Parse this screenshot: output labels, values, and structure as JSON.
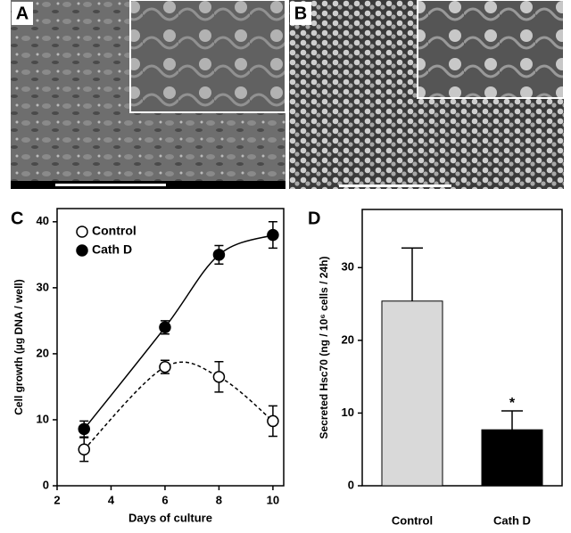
{
  "images": [
    {
      "label": "A"
    },
    {
      "label": "B"
    }
  ],
  "chart_data": [
    {
      "type": "line",
      "label": "C",
      "x_label": "Days of culture",
      "y_label": "Cell growth (µg DNA / well)",
      "x": [
        3,
        6,
        8,
        10
      ],
      "xlim": [
        2,
        10.4
      ],
      "xticks": [
        2,
        4,
        6,
        8,
        10
      ],
      "ylim": [
        0,
        42
      ],
      "yticks": [
        0,
        10,
        20,
        30,
        40
      ],
      "legend": "upper left",
      "series": [
        {
          "name": "Control",
          "color": "#000000",
          "fill": "#ffffff",
          "dash": true,
          "values": [
            5.5,
            18,
            16.5,
            9.8
          ],
          "errors": [
            1.8,
            1,
            2.3,
            2.3
          ]
        },
        {
          "name": "Cath D",
          "color": "#000000",
          "fill": "#000000",
          "dash": false,
          "values": [
            8.6,
            24,
            35,
            38
          ],
          "errors": [
            1.2,
            1,
            1.4,
            2
          ]
        }
      ]
    },
    {
      "type": "bar",
      "label": "D",
      "y_label": "Secreted Hsc70 (ng / 10⁶ cells / 24h)",
      "categories": [
        "Control",
        "Cath D"
      ],
      "values": [
        25.4,
        7.7
      ],
      "errors": [
        7.3,
        2.6
      ],
      "colors": [
        "#d9d9d9",
        "#000000"
      ],
      "ylim": [
        0,
        38
      ],
      "yticks": [
        0,
        10,
        20,
        30
      ],
      "annotations": [
        {
          "category": 1,
          "text": "*"
        }
      ]
    }
  ]
}
